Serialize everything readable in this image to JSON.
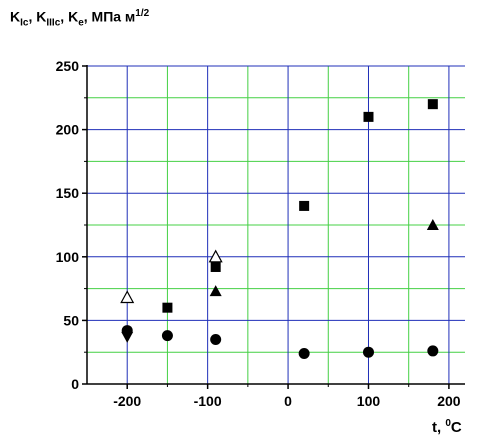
{
  "chart_data": {
    "type": "scatter",
    "ylabel_parts": {
      "k1": "K",
      "k1_sub": "Ic",
      "sep1": ", ",
      "k2": "K",
      "k2_sub": "IIIc",
      "sep2": ", ",
      "k3": "K",
      "k3_sub": "e",
      "sep3": ", ",
      "units": "МПа м",
      "units_sup": "1/2"
    },
    "xlabel_parts": {
      "base": "t, ",
      "sup": "0",
      "unit": "C"
    },
    "xlim": [
      -250,
      220
    ],
    "ylim": [
      0,
      250
    ],
    "x_ticks": [
      -200,
      -100,
      0,
      100,
      200
    ],
    "y_ticks": [
      0,
      50,
      100,
      150,
      200,
      250
    ],
    "grid": true,
    "colors": {
      "major_grid": "#1f2fb8",
      "minor_grid": "#44d044",
      "marker": "#000000"
    },
    "series": [
      {
        "marker": "square",
        "x": [
          -150,
          -90,
          20,
          100,
          180
        ],
        "y": [
          60,
          92,
          140,
          210,
          220
        ]
      },
      {
        "marker": "triangle",
        "x": [
          -90,
          180
        ],
        "y": [
          73,
          125
        ]
      },
      {
        "marker": "triangle-open",
        "x": [
          -200,
          -90
        ],
        "y": [
          68,
          100
        ]
      },
      {
        "marker": "circle",
        "x": [
          -200,
          -150,
          -90,
          20,
          100,
          180
        ],
        "y": [
          42,
          38,
          35,
          24,
          25,
          26
        ]
      },
      {
        "marker": "triangle-down",
        "x": [
          -200
        ],
        "y": [
          37
        ]
      }
    ]
  }
}
